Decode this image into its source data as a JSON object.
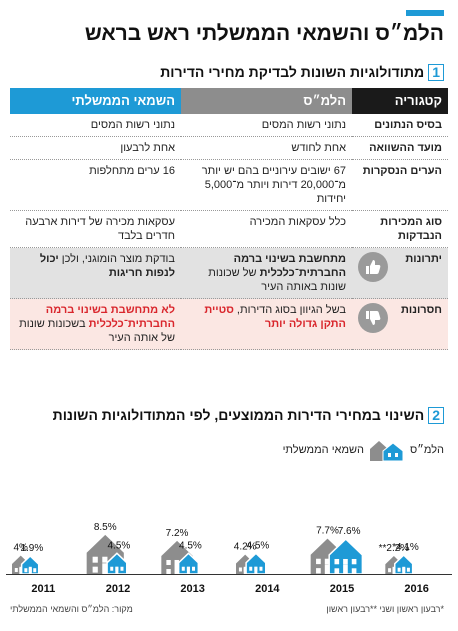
{
  "title": "הלמ״ס והשמאי הממשלתי ראש בראש",
  "section1": {
    "num": "1",
    "title": "מתודולוגיות השונות לבדיקת מחירי הדירות"
  },
  "table": {
    "headers": {
      "category": "קטגוריה",
      "lms": "הלמ״ס",
      "gov": "השמאי הממשלתי"
    },
    "rows": {
      "data_basis": {
        "cat": "בסיס הנתונים",
        "lms": "נתוני רשות המסים",
        "gov": "נתוני רשות המסים"
      },
      "compare_date": {
        "cat": "מועד ההשוואה",
        "lms": "אחת לחודש",
        "gov": "אחת לרבעון"
      },
      "cities": {
        "cat": "הערים הנסקרות",
        "lms": "67 ישובים עירוניים בהם יש יותר מ־20,000 דירות ויותר מ־5,000 יחידות",
        "gov": "16 ערים מתחלפות"
      },
      "sales_type": {
        "cat": "סוג המכירות הנבדקות",
        "lms": "כלל עסקאות המכירה",
        "gov": "עסקאות מכירה של דירות ארבעה חדרים בלבד"
      },
      "advantages": {
        "cat": "יתרונות",
        "lms_bold": "מתחשבת בשינוי ברמה החברתית־כלכלית",
        "lms_rest": " של שכונות שונות באותה העיר",
        "gov_a": "בודקת מוצר הומוגני, ולכן ",
        "gov_bold": "יכול לנפות חריגות"
      },
      "disadvantages": {
        "cat": "חסרונות",
        "lms_a": "בשל הגיוון בסוג הדירות, ",
        "lms_red": "סטיית התקן גדולה יותר",
        "gov_red": "לא מתחשבת בשינוי ברמה החברתית־כלכלית",
        "gov_rest": " בשכונות שונות של אותה העיר"
      }
    }
  },
  "section2": {
    "num": "2",
    "title": "השינוי במחירי הדירות הממוצעים, לפי המתודולוגיות השונות"
  },
  "legend": {
    "lms": "הלמ״ס",
    "gov": "השמאי הממשלתי"
  },
  "colors": {
    "lms": "#8d8d8d",
    "gov": "#1e9ad6",
    "accent": "#1e9ad6",
    "red": "#d9262c",
    "dark": "#1a1a1a"
  },
  "chart_data": {
    "type": "bar",
    "categories": [
      "2011",
      "2012",
      "2013",
      "2014",
      "2015",
      "2016"
    ],
    "series": [
      {
        "name": "הלמ״ס",
        "values": [
          4,
          8.5,
          7.2,
          4.2,
          7.7,
          2.2
        ],
        "labels": [
          "4%",
          "8.5%",
          "7.2%",
          "4.2%",
          "7.7%",
          "**2.2%"
        ]
      },
      {
        "name": "השמאי הממשלתי",
        "values": [
          1.9,
          4.5,
          4.5,
          4.5,
          7.6,
          4.1
        ],
        "labels": [
          "1.9%",
          "4.5%",
          "4.5%",
          "4.5%",
          "7.6%",
          "*4.1%"
        ]
      }
    ]
  },
  "footer": {
    "note": "*רבעון ראשון ושני **רבעון ראשון",
    "source": "מקור: הלמ״ס והשמאי הממשלתי"
  }
}
